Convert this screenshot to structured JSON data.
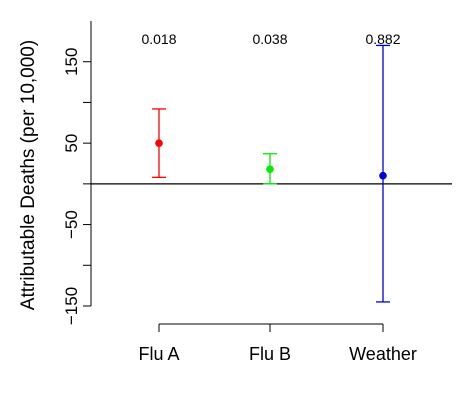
{
  "chart_data": {
    "type": "scatter",
    "ylabel": "Attributable Deaths (per 10,000)",
    "xlabel": "",
    "ylim": [
      -150,
      200
    ],
    "yticks": [
      -150,
      -100,
      -50,
      0,
      50,
      100,
      150
    ],
    "ytick_labels": [
      "−150",
      "",
      "−50",
      "",
      "50",
      "",
      "150"
    ],
    "reference_line": 0,
    "categories": [
      "Flu A",
      "Flu B",
      "Weather"
    ],
    "points": [
      {
        "category": "Flu A",
        "estimate": 50,
        "lower": 8,
        "upper": 92,
        "annotation": "0.018",
        "color": "#ff0000"
      },
      {
        "category": "Flu B",
        "estimate": 18,
        "lower": 0,
        "upper": 37,
        "annotation": "0.038",
        "color": "#00ee00"
      },
      {
        "category": "Weather",
        "estimate": 10,
        "lower": -145,
        "upper": 170,
        "annotation": "0.882",
        "color": "#0000dd"
      }
    ]
  }
}
